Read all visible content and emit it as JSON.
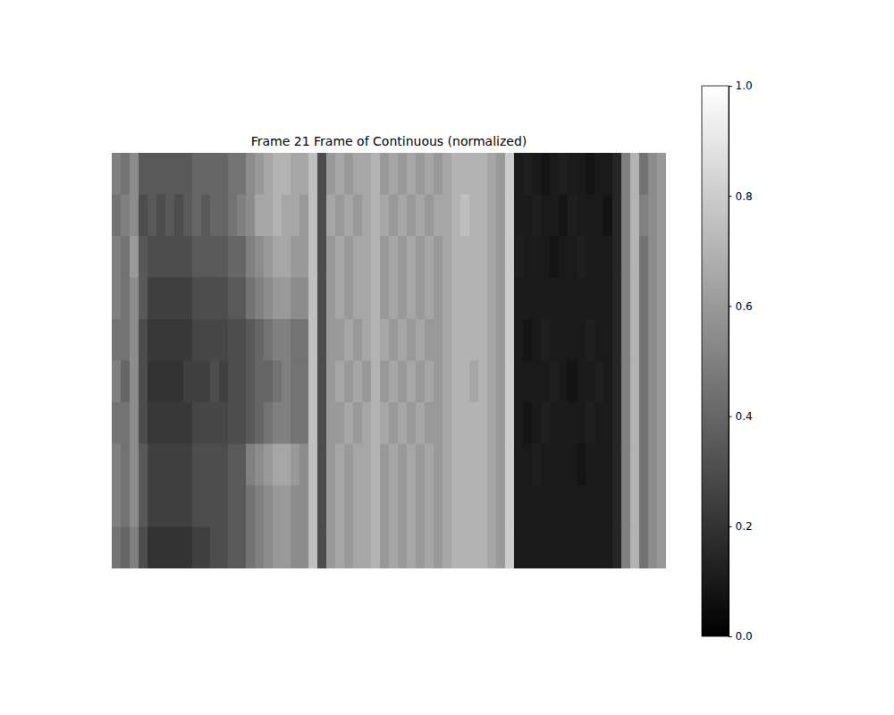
{
  "chart_data": {
    "type": "heatmap",
    "title": "Frame 21 Frame of Continuous (normalized)",
    "tick_labels": false,
    "colorbar_range": [
      0,
      1
    ],
    "colorbar_ticks": [
      {
        "value": 0,
        "label": "0.0"
      },
      {
        "value": 0.2,
        "label": "0.2"
      },
      {
        "value": 0.4,
        "label": "0.4"
      },
      {
        "value": 0.6,
        "label": "0.6"
      },
      {
        "value": 0.8,
        "label": "0.8"
      },
      {
        "value": 1,
        "label": "1.0"
      }
    ],
    "cells": [
      [
        0.5,
        0.45,
        0.55,
        0.35,
        0.35,
        0.35,
        0.35,
        0.35,
        0.35,
        0.4,
        0.4,
        0.4,
        0.4,
        0.45,
        0.45,
        0.55,
        0.6,
        0.65,
        0.7,
        0.7,
        0.65,
        0.65,
        0.75,
        0.3,
        0.6,
        0.65,
        0.6,
        0.65,
        0.65,
        0.7,
        0.6,
        0.65,
        0.6,
        0.65,
        0.6,
        0.65,
        0.6,
        0.65,
        0.7,
        0.7,
        0.7,
        0.7,
        0.65,
        0.6,
        0.8,
        0.1,
        0.12,
        0.1,
        0.08,
        0.1,
        0.12,
        0.1,
        0.1,
        0.08,
        0.1,
        0.1,
        0.15,
        0.5,
        0.7,
        0.45,
        0.55,
        0.6
      ],
      [
        0.45,
        0.5,
        0.55,
        0.3,
        0.35,
        0.3,
        0.35,
        0.3,
        0.35,
        0.4,
        0.35,
        0.4,
        0.4,
        0.45,
        0.5,
        0.55,
        0.65,
        0.65,
        0.7,
        0.65,
        0.65,
        0.6,
        0.75,
        0.3,
        0.65,
        0.6,
        0.65,
        0.6,
        0.65,
        0.7,
        0.65,
        0.6,
        0.65,
        0.6,
        0.65,
        0.6,
        0.65,
        0.65,
        0.7,
        0.75,
        0.7,
        0.7,
        0.65,
        0.6,
        0.8,
        0.1,
        0.1,
        0.12,
        0.1,
        0.1,
        0.08,
        0.12,
        0.1,
        0.1,
        0.1,
        0.08,
        0.15,
        0.5,
        0.7,
        0.5,
        0.55,
        0.6
      ],
      [
        0.5,
        0.45,
        0.6,
        0.35,
        0.3,
        0.3,
        0.3,
        0.3,
        0.3,
        0.35,
        0.35,
        0.35,
        0.35,
        0.4,
        0.4,
        0.5,
        0.55,
        0.6,
        0.65,
        0.65,
        0.6,
        0.6,
        0.75,
        0.3,
        0.6,
        0.65,
        0.6,
        0.65,
        0.65,
        0.7,
        0.6,
        0.65,
        0.6,
        0.65,
        0.6,
        0.65,
        0.6,
        0.65,
        0.7,
        0.7,
        0.7,
        0.7,
        0.65,
        0.6,
        0.8,
        0.12,
        0.1,
        0.1,
        0.1,
        0.08,
        0.1,
        0.1,
        0.12,
        0.1,
        0.1,
        0.1,
        0.15,
        0.5,
        0.7,
        0.45,
        0.55,
        0.6
      ],
      [
        0.5,
        0.45,
        0.55,
        0.35,
        0.25,
        0.25,
        0.25,
        0.25,
        0.25,
        0.3,
        0.3,
        0.3,
        0.3,
        0.35,
        0.35,
        0.45,
        0.5,
        0.55,
        0.6,
        0.6,
        0.55,
        0.55,
        0.75,
        0.3,
        0.6,
        0.65,
        0.6,
        0.65,
        0.65,
        0.7,
        0.6,
        0.65,
        0.6,
        0.65,
        0.6,
        0.65,
        0.6,
        0.65,
        0.7,
        0.7,
        0.7,
        0.7,
        0.65,
        0.6,
        0.8,
        0.1,
        0.1,
        0.1,
        0.1,
        0.1,
        0.1,
        0.1,
        0.1,
        0.1,
        0.1,
        0.1,
        0.15,
        0.5,
        0.7,
        0.45,
        0.55,
        0.6
      ],
      [
        0.45,
        0.45,
        0.55,
        0.3,
        0.22,
        0.22,
        0.22,
        0.22,
        0.22,
        0.28,
        0.28,
        0.28,
        0.28,
        0.3,
        0.3,
        0.35,
        0.4,
        0.45,
        0.5,
        0.5,
        0.45,
        0.45,
        0.75,
        0.3,
        0.6,
        0.6,
        0.65,
        0.6,
        0.65,
        0.7,
        0.65,
        0.6,
        0.65,
        0.6,
        0.65,
        0.6,
        0.6,
        0.65,
        0.7,
        0.7,
        0.7,
        0.7,
        0.65,
        0.6,
        0.8,
        0.1,
        0.08,
        0.1,
        0.12,
        0.1,
        0.1,
        0.1,
        0.1,
        0.12,
        0.1,
        0.1,
        0.15,
        0.5,
        0.7,
        0.45,
        0.55,
        0.6
      ],
      [
        0.5,
        0.4,
        0.55,
        0.3,
        0.2,
        0.2,
        0.2,
        0.2,
        0.25,
        0.25,
        0.25,
        0.3,
        0.25,
        0.3,
        0.3,
        0.35,
        0.4,
        0.4,
        0.45,
        0.5,
        0.45,
        0.45,
        0.75,
        0.3,
        0.6,
        0.65,
        0.6,
        0.65,
        0.6,
        0.7,
        0.6,
        0.65,
        0.6,
        0.65,
        0.6,
        0.65,
        0.6,
        0.65,
        0.7,
        0.7,
        0.65,
        0.7,
        0.65,
        0.6,
        0.8,
        0.1,
        0.1,
        0.1,
        0.1,
        0.12,
        0.1,
        0.08,
        0.1,
        0.1,
        0.12,
        0.1,
        0.15,
        0.5,
        0.7,
        0.45,
        0.55,
        0.6
      ],
      [
        0.45,
        0.45,
        0.55,
        0.3,
        0.22,
        0.22,
        0.22,
        0.22,
        0.22,
        0.28,
        0.28,
        0.28,
        0.28,
        0.3,
        0.3,
        0.35,
        0.4,
        0.45,
        0.5,
        0.5,
        0.45,
        0.45,
        0.75,
        0.3,
        0.6,
        0.6,
        0.65,
        0.6,
        0.65,
        0.7,
        0.65,
        0.6,
        0.65,
        0.6,
        0.65,
        0.6,
        0.6,
        0.65,
        0.7,
        0.7,
        0.7,
        0.7,
        0.65,
        0.6,
        0.8,
        0.1,
        0.08,
        0.1,
        0.12,
        0.1,
        0.1,
        0.1,
        0.1,
        0.12,
        0.1,
        0.1,
        0.15,
        0.5,
        0.7,
        0.45,
        0.55,
        0.6
      ],
      [
        0.5,
        0.45,
        0.55,
        0.35,
        0.25,
        0.25,
        0.25,
        0.25,
        0.25,
        0.3,
        0.3,
        0.3,
        0.3,
        0.35,
        0.35,
        0.5,
        0.55,
        0.6,
        0.65,
        0.65,
        0.6,
        0.55,
        0.75,
        0.3,
        0.6,
        0.65,
        0.6,
        0.65,
        0.65,
        0.7,
        0.6,
        0.65,
        0.6,
        0.65,
        0.6,
        0.65,
        0.6,
        0.65,
        0.7,
        0.7,
        0.7,
        0.7,
        0.65,
        0.6,
        0.8,
        0.1,
        0.1,
        0.12,
        0.1,
        0.1,
        0.1,
        0.1,
        0.08,
        0.1,
        0.1,
        0.1,
        0.15,
        0.5,
        0.7,
        0.45,
        0.55,
        0.6
      ],
      [
        0.5,
        0.45,
        0.55,
        0.35,
        0.25,
        0.25,
        0.25,
        0.25,
        0.25,
        0.3,
        0.3,
        0.3,
        0.3,
        0.35,
        0.35,
        0.45,
        0.5,
        0.55,
        0.6,
        0.6,
        0.55,
        0.55,
        0.75,
        0.3,
        0.6,
        0.65,
        0.6,
        0.65,
        0.65,
        0.7,
        0.6,
        0.65,
        0.6,
        0.65,
        0.6,
        0.65,
        0.6,
        0.65,
        0.7,
        0.7,
        0.7,
        0.7,
        0.65,
        0.6,
        0.8,
        0.1,
        0.1,
        0.1,
        0.1,
        0.1,
        0.1,
        0.1,
        0.1,
        0.1,
        0.1,
        0.1,
        0.15,
        0.5,
        0.7,
        0.45,
        0.55,
        0.6
      ],
      [
        0.45,
        0.4,
        0.5,
        0.3,
        0.2,
        0.2,
        0.2,
        0.2,
        0.2,
        0.25,
        0.25,
        0.3,
        0.3,
        0.35,
        0.35,
        0.45,
        0.5,
        0.55,
        0.6,
        0.6,
        0.55,
        0.55,
        0.75,
        0.3,
        0.6,
        0.65,
        0.6,
        0.65,
        0.65,
        0.7,
        0.6,
        0.65,
        0.6,
        0.65,
        0.6,
        0.65,
        0.6,
        0.65,
        0.7,
        0.7,
        0.7,
        0.7,
        0.65,
        0.6,
        0.8,
        0.1,
        0.1,
        0.1,
        0.1,
        0.1,
        0.1,
        0.1,
        0.1,
        0.1,
        0.1,
        0.1,
        0.15,
        0.5,
        0.7,
        0.45,
        0.55,
        0.6
      ]
    ]
  }
}
